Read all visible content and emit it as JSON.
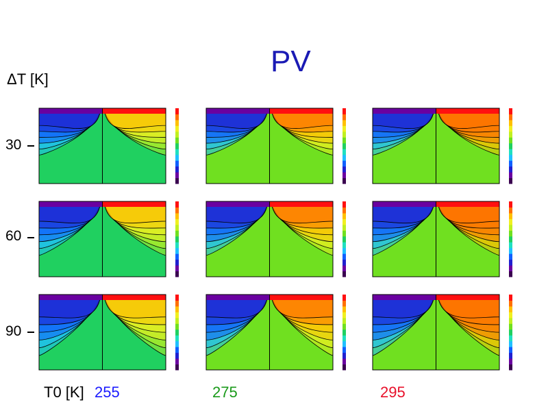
{
  "title": "PV",
  "row_axis_label": "ΔT [K]",
  "rows": [
    {
      "label": "30"
    },
    {
      "label": "60"
    },
    {
      "label": "90"
    }
  ],
  "col_axis_label": "T0 [K]",
  "columns": [
    {
      "label": "255",
      "color": "#1a1aff"
    },
    {
      "label": "275",
      "color": "#1a9a1a"
    },
    {
      "label": "295",
      "color": "#e8102a"
    }
  ],
  "colormap": [
    "#3a0050",
    "#6a00a0",
    "#2020d0",
    "#1060ff",
    "#20c0ff",
    "#20e0c0",
    "#20d060",
    "#70e020",
    "#c0f020",
    "#f0f020",
    "#ffc000",
    "#ff7000",
    "#ff1010"
  ]
}
